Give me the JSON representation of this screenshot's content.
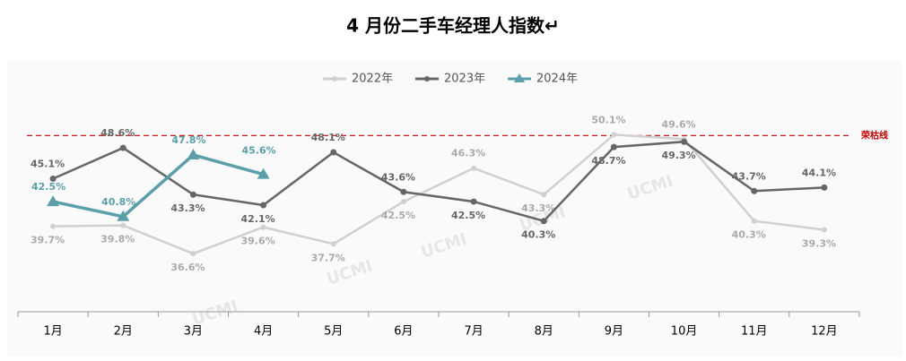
{
  "chart_data": {
    "type": "line",
    "title": "4 月份二手车经理人指数↵",
    "categories": [
      "1月",
      "2月",
      "3月",
      "4月",
      "5月",
      "6月",
      "7月",
      "8月",
      "9月",
      "10月",
      "11月",
      "12月"
    ],
    "series": [
      {
        "name": "2022年",
        "color": "#d0d0d0",
        "marker": "circle",
        "values": [
          39.7,
          39.8,
          36.6,
          39.6,
          37.7,
          42.5,
          46.3,
          43.3,
          50.1,
          49.6,
          40.3,
          39.3
        ],
        "value_labels": [
          "39.7%",
          "39.8%",
          "36.6%",
          "39.6%",
          "37.7%",
          "42.5%",
          "46.3%",
          "43.3%",
          "50.1%",
          "49.6%",
          "40.3%",
          "39.3%"
        ]
      },
      {
        "name": "2023年",
        "color": "#666666",
        "marker": "circle",
        "values": [
          45.1,
          48.6,
          43.3,
          42.1,
          48.1,
          43.6,
          42.5,
          40.3,
          48.7,
          49.3,
          43.7,
          44.1
        ],
        "value_labels": [
          "45.1%",
          "48.6%",
          "43.3%",
          "42.1%",
          "48.1%",
          "43.6%",
          "42.5%",
          "40.3%",
          "48.7%",
          "49.3%",
          "43.7%",
          "44.1%"
        ]
      },
      {
        "name": "2024年",
        "color": "#5b9faa",
        "marker": "triangle",
        "values": [
          42.5,
          40.8,
          47.8,
          45.6,
          null,
          null,
          null,
          null,
          null,
          null,
          null,
          null
        ],
        "value_labels": [
          "42.5%",
          "40.8%",
          "47.8%",
          "45.6%",
          null,
          null,
          null,
          null,
          null,
          null,
          null,
          null
        ]
      }
    ],
    "reference_line": {
      "value": 50,
      "label": "荣枯线",
      "color": "#c00000"
    },
    "watermark": "UCMI",
    "ylim": [
      30,
      54
    ],
    "legend": "top"
  }
}
